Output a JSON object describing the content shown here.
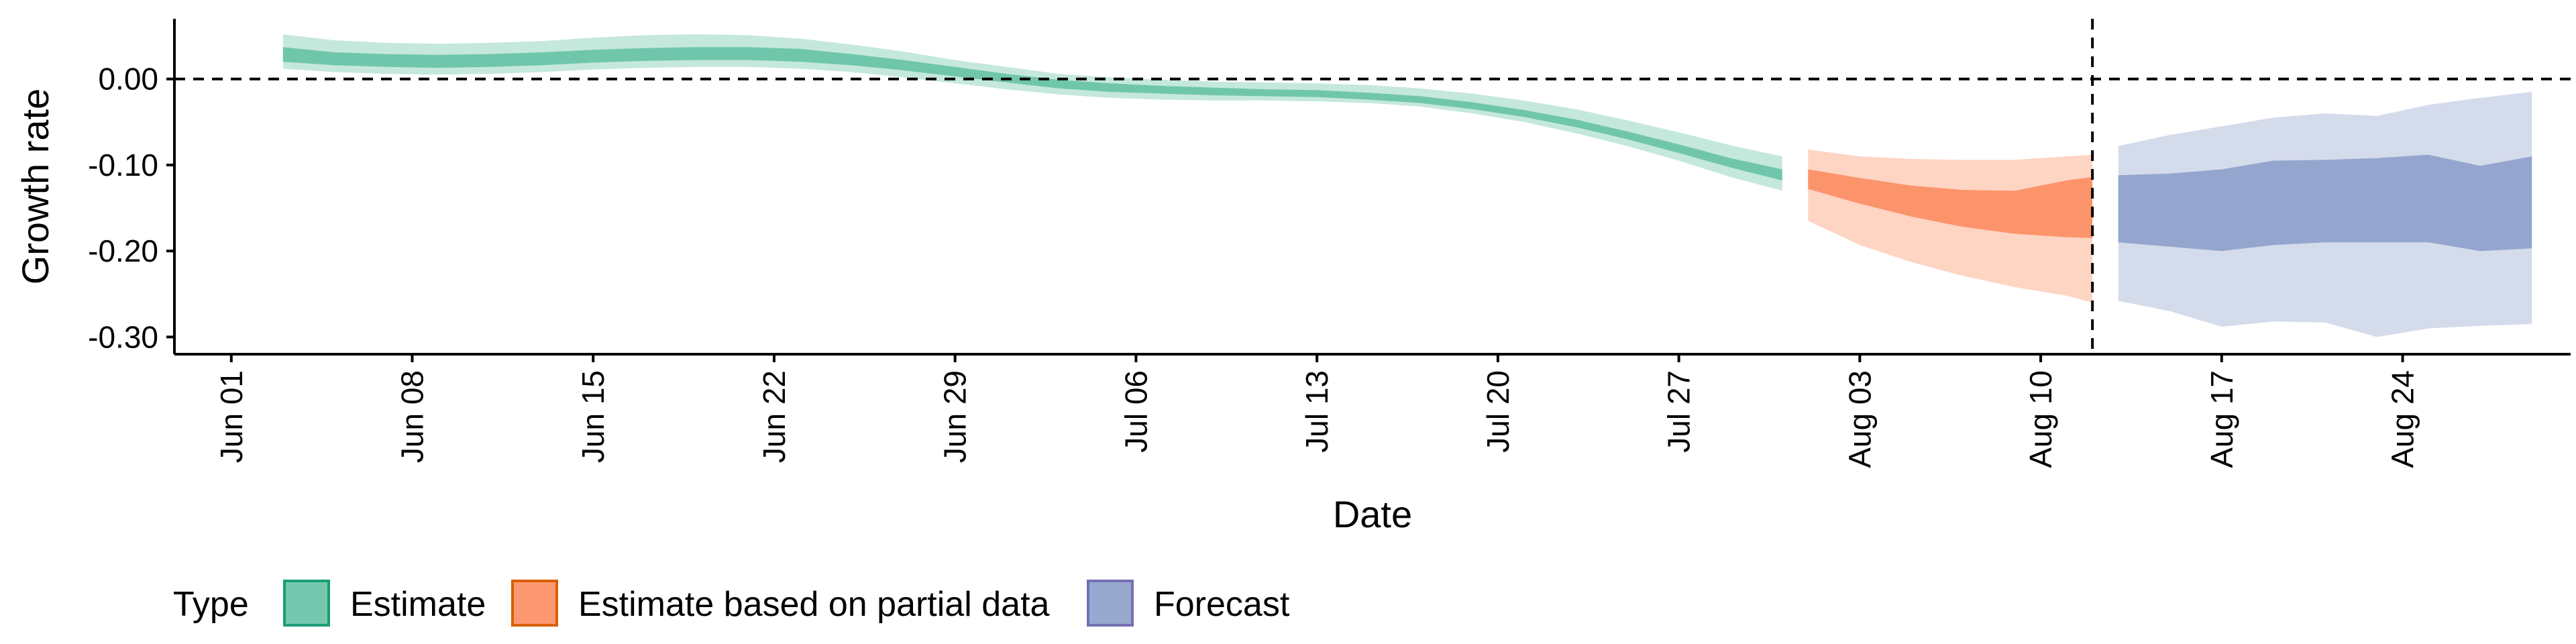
{
  "chart_data": {
    "type": "area",
    "xlabel": "Date",
    "ylabel": "Growth rate",
    "x_ticks": [
      "Jun 01",
      "Jun 08",
      "Jun 15",
      "Jun 22",
      "Jun 29",
      "Jul 06",
      "Jul 13",
      "Jul 20",
      "Jul 27",
      "Aug 03",
      "Aug 10",
      "Aug 17",
      "Aug 24"
    ],
    "y_ticks": [
      "0.00",
      "-0.10",
      "-0.20",
      "-0.30"
    ],
    "y_tick_values": [
      0.0,
      -0.1,
      -0.2,
      -0.3
    ],
    "xlim_days": [
      -2.2,
      90.5
    ],
    "xlim": [
      "2020-05-30",
      "2020-08-31"
    ],
    "ylim": [
      -0.32,
      0.07
    ],
    "reference_lines": {
      "horizontal_y": 0.0,
      "vertical_x_day": 72.0,
      "vertical_x": "Aug 12"
    },
    "legend": {
      "title": "Type",
      "position": "bottom-left"
    },
    "colors": {
      "Estimate": "#1b9e77",
      "Estimate based on partial data": "#d95f02",
      "Forecast": "#7570b3"
    },
    "series": [
      {
        "name": "Estimate",
        "fill_color": "#66c2a5",
        "x": [
          2,
          4,
          6,
          8,
          10,
          12,
          14,
          16,
          18,
          20,
          22,
          24,
          26,
          28,
          30,
          32,
          34,
          36,
          38,
          40,
          42,
          44,
          46,
          48,
          50,
          52,
          54,
          56,
          58,
          60
        ],
        "outer_lower": [
          0.012,
          0.008,
          0.006,
          0.005,
          0.006,
          0.008,
          0.011,
          0.013,
          0.014,
          0.014,
          0.012,
          0.008,
          0.002,
          -0.005,
          -0.012,
          -0.018,
          -0.022,
          -0.024,
          -0.025,
          -0.025,
          -0.026,
          -0.028,
          -0.032,
          -0.04,
          -0.05,
          -0.063,
          -0.078,
          -0.095,
          -0.114,
          -0.13
        ],
        "inner_lower": [
          0.02,
          0.016,
          0.014,
          0.013,
          0.014,
          0.016,
          0.019,
          0.021,
          0.022,
          0.022,
          0.02,
          0.016,
          0.01,
          0.003,
          -0.004,
          -0.011,
          -0.015,
          -0.017,
          -0.019,
          -0.02,
          -0.021,
          -0.024,
          -0.028,
          -0.035,
          -0.044,
          -0.056,
          -0.07,
          -0.086,
          -0.103,
          -0.118
        ],
        "inner_upper": [
          0.037,
          0.031,
          0.029,
          0.028,
          0.029,
          0.031,
          0.034,
          0.036,
          0.037,
          0.037,
          0.035,
          0.029,
          0.022,
          0.014,
          0.006,
          -0.001,
          -0.005,
          -0.008,
          -0.01,
          -0.012,
          -0.013,
          -0.016,
          -0.02,
          -0.027,
          -0.036,
          -0.047,
          -0.061,
          -0.076,
          -0.092,
          -0.105
        ],
        "outer_upper": [
          0.052,
          0.045,
          0.042,
          0.041,
          0.042,
          0.044,
          0.048,
          0.051,
          0.052,
          0.051,
          0.047,
          0.04,
          0.032,
          0.022,
          0.014,
          0.006,
          0.002,
          -0.001,
          -0.003,
          -0.004,
          -0.005,
          -0.007,
          -0.011,
          -0.017,
          -0.025,
          -0.035,
          -0.048,
          -0.062,
          -0.077,
          -0.09
        ]
      },
      {
        "name": "Estimate based on partial data",
        "fill_color": "#fc8d62",
        "x": [
          61,
          63,
          65,
          67,
          69,
          71,
          72
        ],
        "outer_lower": [
          -0.165,
          -0.193,
          -0.213,
          -0.229,
          -0.242,
          -0.252,
          -0.26
        ],
        "inner_lower": [
          -0.128,
          -0.145,
          -0.16,
          -0.172,
          -0.18,
          -0.184,
          -0.185
        ],
        "inner_upper": [
          -0.105,
          -0.115,
          -0.124,
          -0.129,
          -0.13,
          -0.118,
          -0.114
        ],
        "outer_upper": [
          -0.082,
          -0.09,
          -0.093,
          -0.094,
          -0.094,
          -0.09,
          -0.088
        ]
      },
      {
        "name": "Forecast",
        "fill_color": "#8da0cb",
        "x": [
          73,
          75,
          77,
          79,
          81,
          83,
          85,
          87,
          89
        ],
        "outer_lower": [
          -0.258,
          -0.27,
          -0.288,
          -0.282,
          -0.283,
          -0.3,
          -0.29,
          -0.287,
          -0.285
        ],
        "inner_lower": [
          -0.19,
          -0.195,
          -0.2,
          -0.193,
          -0.19,
          -0.19,
          -0.19,
          -0.2,
          -0.197
        ],
        "inner_upper": [
          -0.112,
          -0.11,
          -0.105,
          -0.095,
          -0.094,
          -0.092,
          -0.088,
          -0.101,
          -0.09
        ],
        "outer_upper": [
          -0.078,
          -0.065,
          -0.055,
          -0.045,
          -0.04,
          -0.043,
          -0.03,
          -0.022,
          -0.015
        ]
      }
    ]
  }
}
